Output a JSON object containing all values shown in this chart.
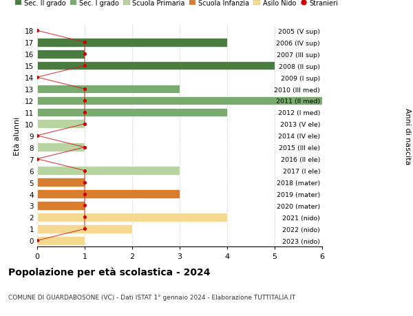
{
  "ages": [
    18,
    17,
    16,
    15,
    14,
    13,
    12,
    11,
    10,
    9,
    8,
    7,
    6,
    5,
    4,
    3,
    2,
    1,
    0
  ],
  "right_labels": [
    "2005 (V sup)",
    "2006 (IV sup)",
    "2007 (III sup)",
    "2008 (II sup)",
    "2009 (I sup)",
    "2010 (III med)",
    "2011 (II med)",
    "2012 (I med)",
    "2013 (V ele)",
    "2014 (IV ele)",
    "2015 (III ele)",
    "2016 (II ele)",
    "2017 (I ele)",
    "2018 (mater)",
    "2019 (mater)",
    "2020 (mater)",
    "2021 (nido)",
    "2022 (nido)",
    "2023 (nido)"
  ],
  "bar_values": [
    0,
    4,
    1,
    5,
    0,
    3,
    6,
    4,
    1,
    0,
    1,
    0,
    3,
    1,
    3,
    1,
    4,
    2,
    1
  ],
  "bar_colors": [
    "#4a7c3f",
    "#4a7c3f",
    "#4a7c3f",
    "#4a7c3f",
    "#4a7c3f",
    "#7aab6e",
    "#7aab6e",
    "#7aab6e",
    "#b8d4a0",
    "#b8d4a0",
    "#b8d4a0",
    "#b8d4a0",
    "#b8d4a0",
    "#d97c2b",
    "#d97c2b",
    "#d97c2b",
    "#f5d98e",
    "#f5d98e",
    "#f5d98e"
  ],
  "stranieri_x": [
    0,
    1,
    1,
    1,
    0,
    1,
    1,
    1,
    1,
    0,
    1,
    0,
    1,
    1,
    1,
    1,
    1,
    1,
    0
  ],
  "legend_labels": [
    "Sec. II grado",
    "Sec. I grado",
    "Scuola Primaria",
    "Scuola Infanzia",
    "Asilo Nido",
    "Stranieri"
  ],
  "legend_colors": [
    "#4a7c3f",
    "#7aab6e",
    "#b8d4a0",
    "#d97c2b",
    "#f5d98e",
    "#cc0000"
  ],
  "title": "Popolazione per età scolastica - 2024",
  "subtitle": "COMUNE DI GUARDABOSONE (VC) - Dati ISTAT 1° gennaio 2024 - Elaborazione TUTTITALIA.IT",
  "ylabel": "Età alunni",
  "ylabel_right": "Anni di nascita",
  "xlim": [
    0,
    6
  ],
  "bg_color": "#ffffff",
  "grid_color": "#cccccc",
  "bar_height": 0.75
}
